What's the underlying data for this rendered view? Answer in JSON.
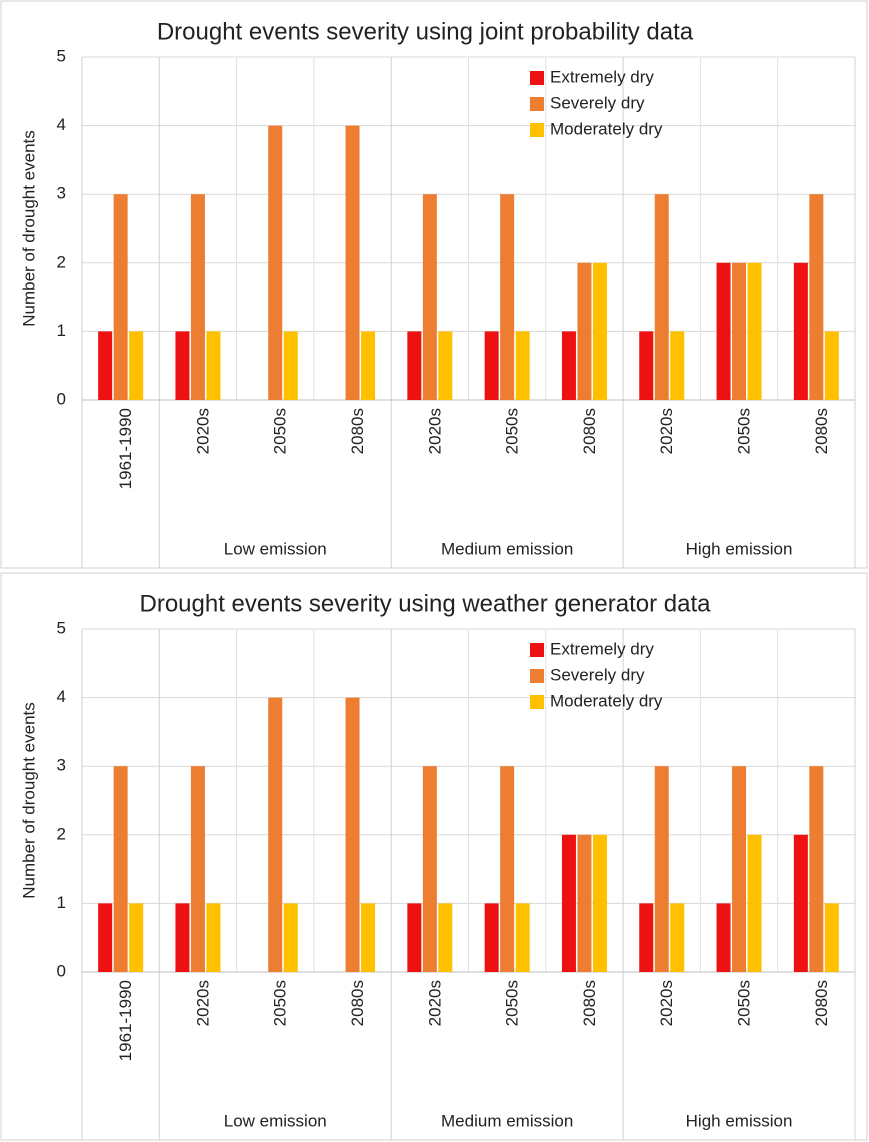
{
  "chart_data": [
    {
      "type": "bar",
      "title": "Drought events severity using joint probability data",
      "y_label": "Number of drought events",
      "category_groups": [
        {
          "name": null,
          "categories": [
            "1961-1990"
          ]
        },
        {
          "name": "Low emission",
          "categories": [
            "2020s",
            "2050s",
            "2080s"
          ]
        },
        {
          "name": "Medium emission",
          "categories": [
            "2020s",
            "2050s",
            "2080s"
          ]
        },
        {
          "name": "High emission",
          "categories": [
            "2020s",
            "2050s",
            "2080s"
          ]
        }
      ],
      "series": [
        {
          "name": "Extremely dry",
          "color": "#ee1111",
          "values": [
            1,
            1,
            0,
            0,
            1,
            1,
            1,
            1,
            2,
            2
          ]
        },
        {
          "name": "Severely dry",
          "color": "#ed7d31",
          "values": [
            3,
            3,
            4,
            4,
            3,
            3,
            2,
            3,
            2,
            3
          ]
        },
        {
          "name": "Moderately dry",
          "color": "#ffc000",
          "values": [
            1,
            1,
            1,
            1,
            1,
            1,
            2,
            1,
            2,
            1
          ]
        }
      ],
      "ylim": [
        0,
        5
      ],
      "yticks": [
        0,
        1,
        2,
        3,
        4,
        5
      ],
      "grid": true,
      "legend": "top-right"
    },
    {
      "type": "bar",
      "title": "Drought events severity using weather generator data",
      "y_label": "Number of drought events",
      "category_groups": [
        {
          "name": null,
          "categories": [
            "1961-1990"
          ]
        },
        {
          "name": "Low emission",
          "categories": [
            "2020s",
            "2050s",
            "2080s"
          ]
        },
        {
          "name": "Medium emission",
          "categories": [
            "2020s",
            "2050s",
            "2080s"
          ]
        },
        {
          "name": "High emission",
          "categories": [
            "2020s",
            "2050s",
            "2080s"
          ]
        }
      ],
      "series": [
        {
          "name": "Extremely dry",
          "color": "#ee1111",
          "values": [
            1,
            1,
            0,
            0,
            1,
            1,
            2,
            1,
            1,
            2
          ]
        },
        {
          "name": "Severely dry",
          "color": "#ed7d31",
          "values": [
            3,
            3,
            4,
            4,
            3,
            3,
            2,
            3,
            3,
            3
          ]
        },
        {
          "name": "Moderately dry",
          "color": "#ffc000",
          "values": [
            1,
            1,
            1,
            1,
            1,
            1,
            2,
            1,
            2,
            1
          ]
        }
      ],
      "ylim": [
        0,
        5
      ],
      "yticks": [
        0,
        1,
        2,
        3,
        4,
        5
      ],
      "grid": true,
      "legend": "top-right"
    }
  ]
}
